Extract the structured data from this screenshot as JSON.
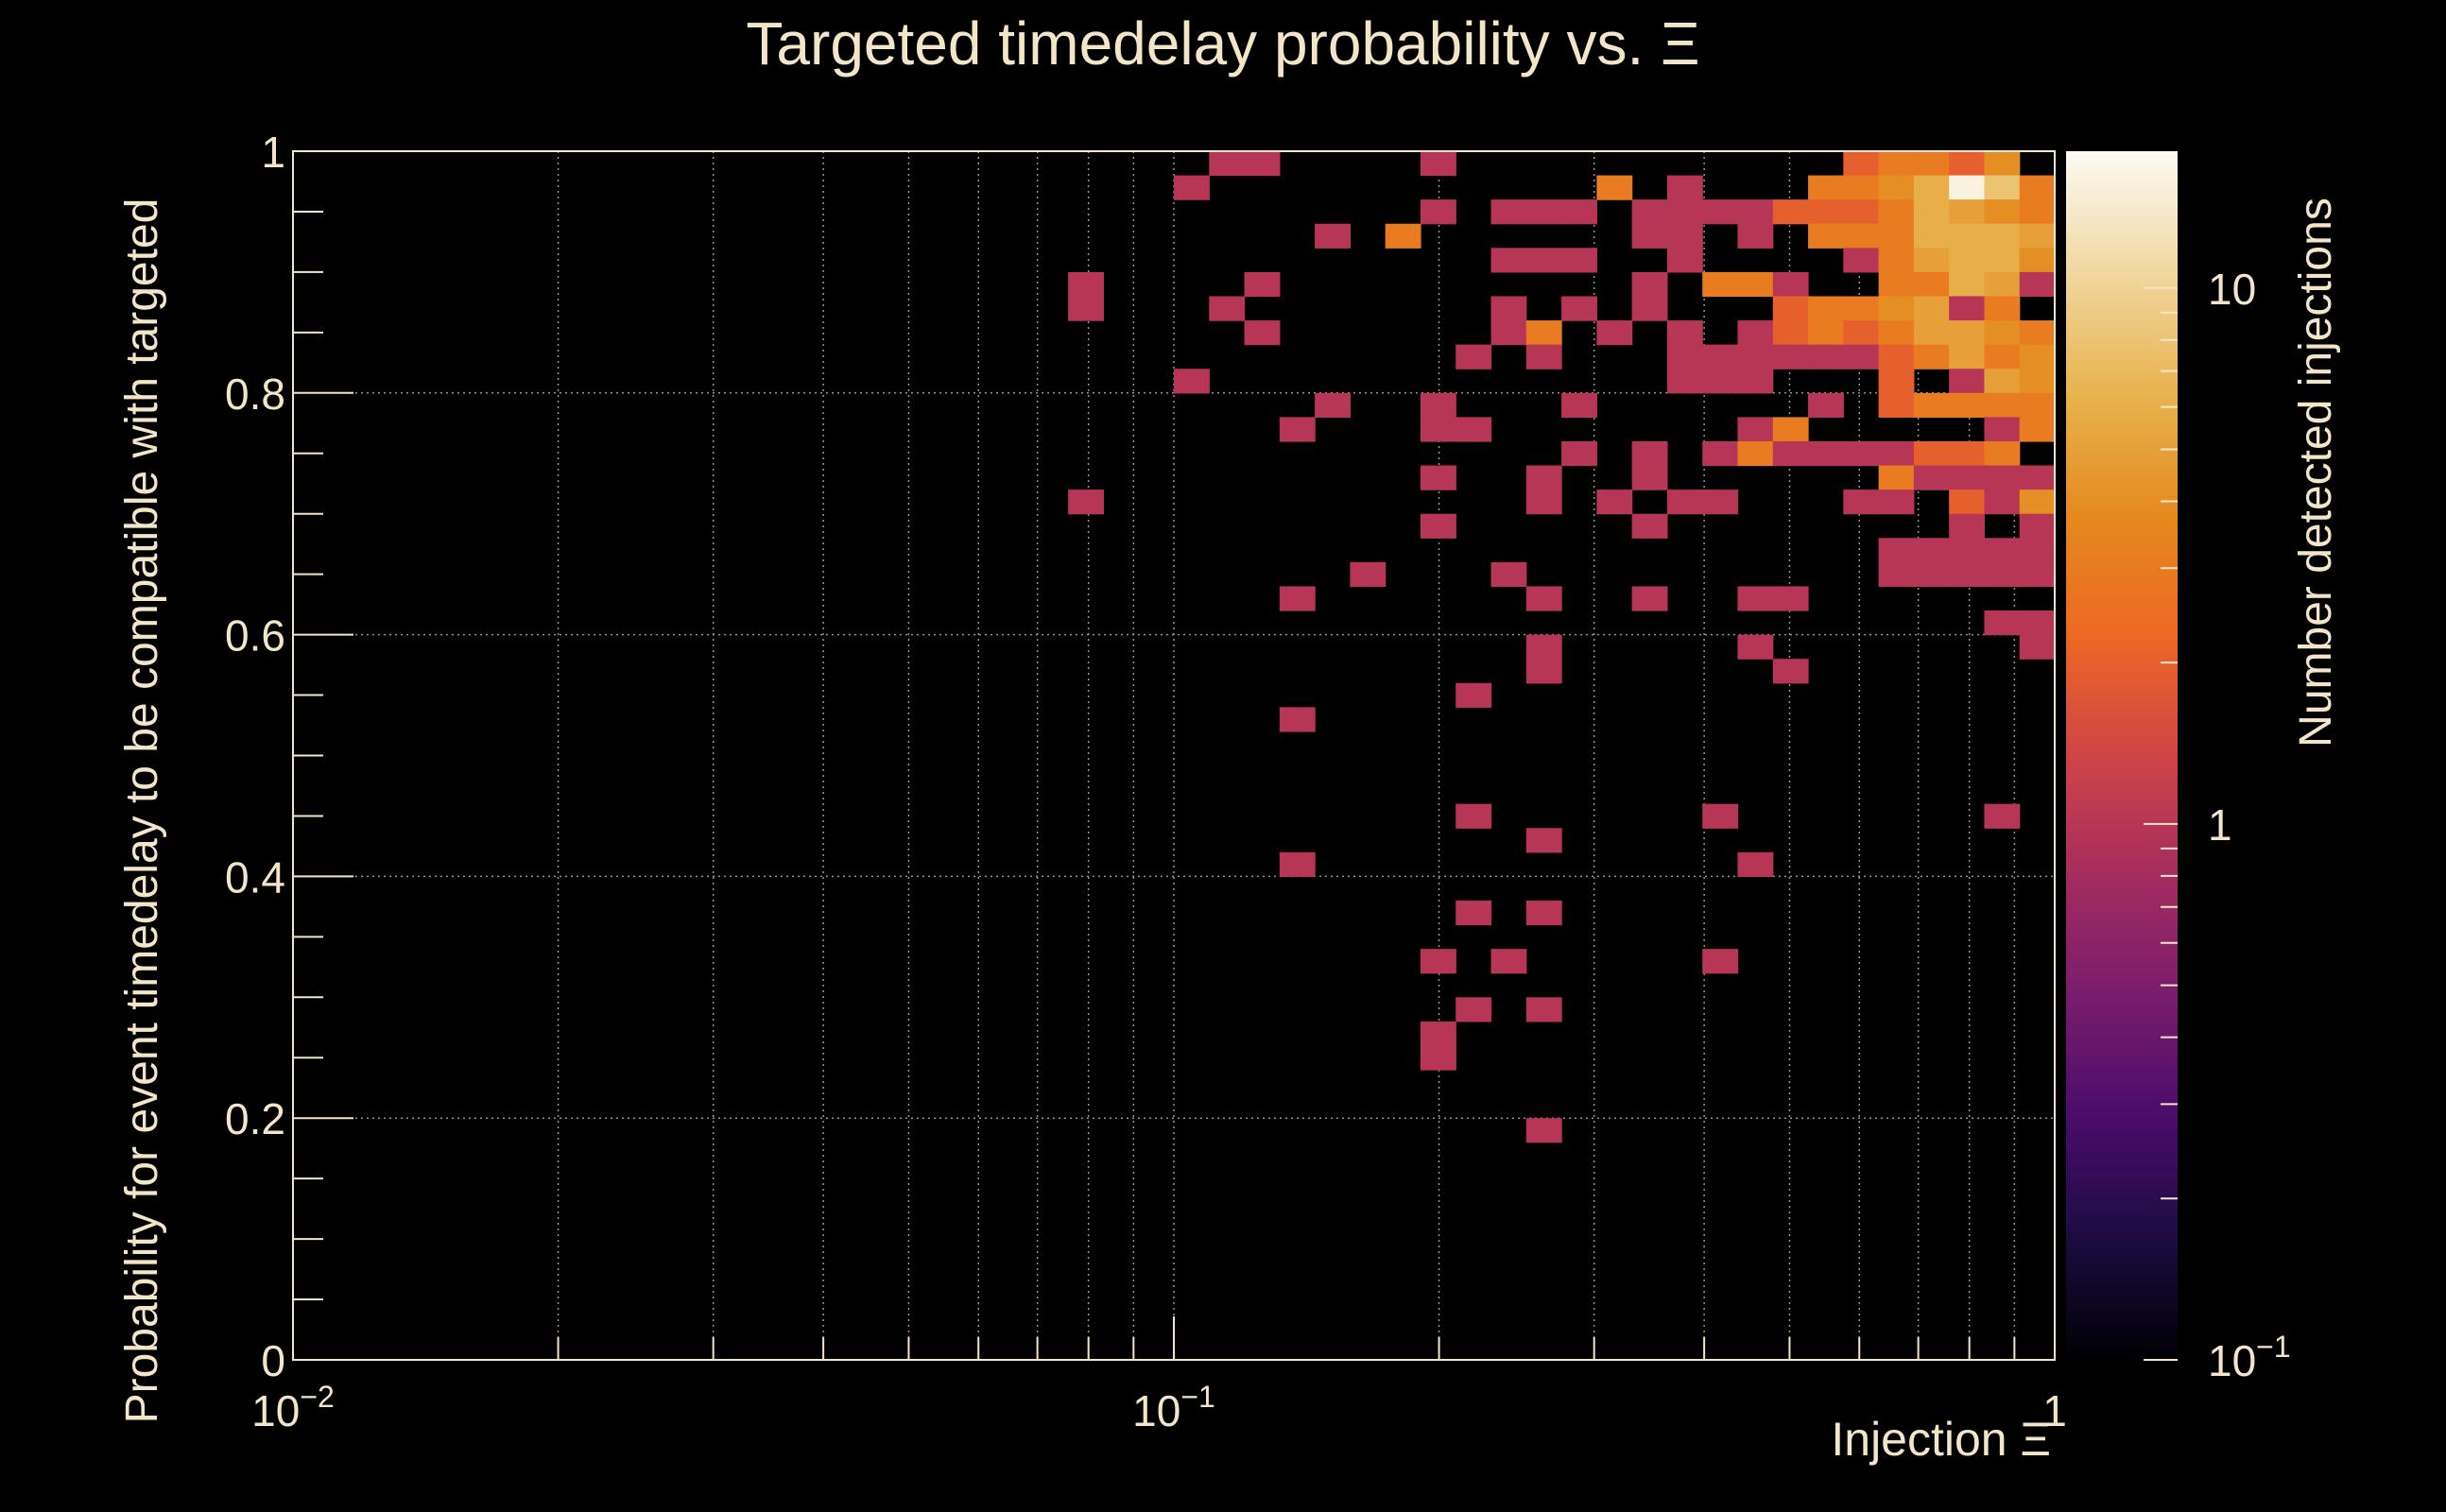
{
  "chart_data": {
    "type": "heatmap",
    "title": "Targeted timedelay probability vs.  Ξ",
    "xlabel": "Injection Ξ",
    "ylabel": "Probability for event timedelay to be compatible with targeted",
    "colorbar_label": "Number detected injections",
    "x_scale": "log",
    "xlim": [
      0.01,
      1
    ],
    "ylim": [
      0,
      1
    ],
    "x_ticks": [
      {
        "v": 0.01,
        "base": "10",
        "exp": "−2"
      },
      {
        "v": 0.1,
        "base": "10",
        "exp": "−1"
      },
      {
        "v": 1,
        "base": "1",
        "exp": ""
      }
    ],
    "y_ticks": [
      {
        "v": 0,
        "label": "0"
      },
      {
        "v": 0.2,
        "label": "0.2"
      },
      {
        "v": 0.4,
        "label": "0.4"
      },
      {
        "v": 0.6,
        "label": "0.6"
      },
      {
        "v": 0.8,
        "label": "0.8"
      },
      {
        "v": 1,
        "label": "1"
      }
    ],
    "z_scale": "log",
    "zlim": [
      0.1,
      18
    ],
    "z_ticks": [
      {
        "v": 10,
        "base": "10",
        "exp": ""
      },
      {
        "v": 1,
        "base": "1",
        "exp": ""
      },
      {
        "v": 0.1,
        "base": "10",
        "exp": "−1"
      }
    ],
    "grid": true,
    "colormap": [
      "#000004",
      "#1b0c41",
      "#4a0c6b",
      "#781c6d",
      "#a52c60",
      "#cf4446",
      "#ed6925",
      "#e58a1e",
      "#e8b350",
      "#f1d7a0",
      "#fcfaf4"
    ],
    "bins": {
      "x_count": 50,
      "y_count": 50,
      "x_min_exp": -2,
      "x_max_exp": 0,
      "note_cells": "[ix, iy, count]"
    },
    "cells": [
      [
        26,
        49,
        1
      ],
      [
        27,
        49,
        1
      ],
      [
        32,
        49,
        1
      ],
      [
        44,
        49,
        2
      ],
      [
        45,
        49,
        3
      ],
      [
        46,
        49,
        3
      ],
      [
        47,
        49,
        2
      ],
      [
        48,
        49,
        4
      ],
      [
        25,
        48,
        1
      ],
      [
        37,
        48,
        3
      ],
      [
        39,
        48,
        1
      ],
      [
        43,
        48,
        3
      ],
      [
        44,
        48,
        3
      ],
      [
        45,
        48,
        4
      ],
      [
        46,
        48,
        6
      ],
      [
        47,
        48,
        16
      ],
      [
        48,
        48,
        8
      ],
      [
        49,
        48,
        3
      ],
      [
        32,
        47,
        1
      ],
      [
        34,
        47,
        1
      ],
      [
        35,
        47,
        1
      ],
      [
        36,
        47,
        1
      ],
      [
        38,
        47,
        1
      ],
      [
        39,
        47,
        1
      ],
      [
        40,
        47,
        1
      ],
      [
        41,
        47,
        1
      ],
      [
        42,
        47,
        2
      ],
      [
        43,
        47,
        2
      ],
      [
        44,
        47,
        2
      ],
      [
        45,
        47,
        3
      ],
      [
        46,
        47,
        6
      ],
      [
        47,
        47,
        5
      ],
      [
        48,
        47,
        4
      ],
      [
        49,
        47,
        3
      ],
      [
        29,
        46,
        1
      ],
      [
        31,
        46,
        3
      ],
      [
        38,
        46,
        1
      ],
      [
        39,
        46,
        1
      ],
      [
        41,
        46,
        1
      ],
      [
        43,
        46,
        3
      ],
      [
        44,
        46,
        3
      ],
      [
        45,
        46,
        3
      ],
      [
        46,
        46,
        6
      ],
      [
        47,
        46,
        6
      ],
      [
        48,
        46,
        6
      ],
      [
        49,
        46,
        5
      ],
      [
        34,
        45,
        1
      ],
      [
        35,
        45,
        1
      ],
      [
        36,
        45,
        1
      ],
      [
        39,
        45,
        1
      ],
      [
        44,
        45,
        1
      ],
      [
        45,
        45,
        3
      ],
      [
        46,
        45,
        5
      ],
      [
        47,
        45,
        6
      ],
      [
        48,
        45,
        6
      ],
      [
        49,
        45,
        4
      ],
      [
        22,
        44,
        1
      ],
      [
        27,
        44,
        1
      ],
      [
        38,
        44,
        1
      ],
      [
        40,
        44,
        3
      ],
      [
        41,
        44,
        3
      ],
      [
        42,
        44,
        1
      ],
      [
        45,
        44,
        3
      ],
      [
        46,
        44,
        3
      ],
      [
        47,
        44,
        6
      ],
      [
        48,
        44,
        5
      ],
      [
        49,
        44,
        1
      ],
      [
        22,
        43,
        1
      ],
      [
        26,
        43,
        1
      ],
      [
        34,
        43,
        1
      ],
      [
        36,
        43,
        1
      ],
      [
        38,
        43,
        1
      ],
      [
        42,
        43,
        2
      ],
      [
        43,
        43,
        3
      ],
      [
        44,
        43,
        3
      ],
      [
        45,
        43,
        4
      ],
      [
        46,
        43,
        5
      ],
      [
        47,
        43,
        1
      ],
      [
        48,
        43,
        3
      ],
      [
        27,
        42,
        1
      ],
      [
        34,
        42,
        1
      ],
      [
        35,
        42,
        3
      ],
      [
        37,
        42,
        1
      ],
      [
        39,
        42,
        1
      ],
      [
        41,
        42,
        1
      ],
      [
        42,
        42,
        2
      ],
      [
        43,
        42,
        3
      ],
      [
        44,
        42,
        2
      ],
      [
        45,
        42,
        3
      ],
      [
        46,
        42,
        5
      ],
      [
        47,
        42,
        5
      ],
      [
        48,
        42,
        4
      ],
      [
        49,
        42,
        3
      ],
      [
        33,
        41,
        1
      ],
      [
        35,
        41,
        1
      ],
      [
        39,
        41,
        1
      ],
      [
        40,
        41,
        1
      ],
      [
        41,
        41,
        1
      ],
      [
        42,
        41,
        1
      ],
      [
        43,
        41,
        1
      ],
      [
        44,
        41,
        1
      ],
      [
        45,
        41,
        2
      ],
      [
        46,
        41,
        3
      ],
      [
        47,
        41,
        5
      ],
      [
        48,
        41,
        3
      ],
      [
        49,
        41,
        4
      ],
      [
        25,
        40,
        1
      ],
      [
        39,
        40,
        1
      ],
      [
        40,
        40,
        1
      ],
      [
        41,
        40,
        1
      ],
      [
        45,
        40,
        2
      ],
      [
        47,
        40,
        1
      ],
      [
        48,
        40,
        5
      ],
      [
        49,
        40,
        4
      ],
      [
        29,
        39,
        1
      ],
      [
        32,
        39,
        1
      ],
      [
        36,
        39,
        1
      ],
      [
        43,
        39,
        1
      ],
      [
        45,
        39,
        2
      ],
      [
        46,
        39,
        3
      ],
      [
        47,
        39,
        3
      ],
      [
        48,
        39,
        3
      ],
      [
        49,
        39,
        3
      ],
      [
        28,
        38,
        1
      ],
      [
        32,
        38,
        1
      ],
      [
        33,
        38,
        1
      ],
      [
        41,
        38,
        1
      ],
      [
        42,
        38,
        3
      ],
      [
        48,
        38,
        1
      ],
      [
        49,
        38,
        3
      ],
      [
        36,
        37,
        1
      ],
      [
        38,
        37,
        1
      ],
      [
        40,
        37,
        1
      ],
      [
        41,
        37,
        3
      ],
      [
        42,
        37,
        1
      ],
      [
        43,
        37,
        1
      ],
      [
        44,
        37,
        1
      ],
      [
        45,
        37,
        1
      ],
      [
        46,
        37,
        2
      ],
      [
        47,
        37,
        2
      ],
      [
        48,
        37,
        3
      ],
      [
        32,
        36,
        1
      ],
      [
        35,
        36,
        1
      ],
      [
        38,
        36,
        1
      ],
      [
        45,
        36,
        3
      ],
      [
        46,
        36,
        1
      ],
      [
        47,
        36,
        1
      ],
      [
        48,
        36,
        1
      ],
      [
        49,
        36,
        1
      ],
      [
        22,
        35,
        1
      ],
      [
        35,
        35,
        1
      ],
      [
        37,
        35,
        1
      ],
      [
        39,
        35,
        1
      ],
      [
        40,
        35,
        1
      ],
      [
        44,
        35,
        1
      ],
      [
        45,
        35,
        1
      ],
      [
        47,
        35,
        2
      ],
      [
        48,
        35,
        1
      ],
      [
        49,
        35,
        4
      ],
      [
        32,
        34,
        1
      ],
      [
        38,
        34,
        1
      ],
      [
        47,
        34,
        1
      ],
      [
        49,
        34,
        1
      ],
      [
        45,
        33,
        1
      ],
      [
        46,
        33,
        1
      ],
      [
        47,
        33,
        1
      ],
      [
        48,
        33,
        1
      ],
      [
        49,
        33,
        1
      ],
      [
        30,
        32,
        1
      ],
      [
        34,
        32,
        1
      ],
      [
        45,
        32,
        1
      ],
      [
        46,
        32,
        1
      ],
      [
        47,
        32,
        1
      ],
      [
        48,
        32,
        1
      ],
      [
        49,
        32,
        1
      ],
      [
        28,
        31,
        1
      ],
      [
        35,
        31,
        1
      ],
      [
        38,
        31,
        1
      ],
      [
        41,
        31,
        1
      ],
      [
        42,
        31,
        1
      ],
      [
        48,
        30,
        1
      ],
      [
        49,
        30,
        1
      ],
      [
        35,
        29,
        1
      ],
      [
        41,
        29,
        1
      ],
      [
        49,
        29,
        1
      ],
      [
        35,
        28,
        1
      ],
      [
        42,
        28,
        1
      ],
      [
        33,
        27,
        1
      ],
      [
        28,
        26,
        1
      ],
      [
        33,
        22,
        1
      ],
      [
        40,
        22,
        1
      ],
      [
        48,
        22,
        1
      ],
      [
        35,
        21,
        1
      ],
      [
        28,
        20,
        1
      ],
      [
        41,
        20,
        1
      ],
      [
        33,
        18,
        1
      ],
      [
        35,
        18,
        1
      ],
      [
        32,
        16,
        1
      ],
      [
        34,
        16,
        1
      ],
      [
        40,
        16,
        1
      ],
      [
        33,
        14,
        1
      ],
      [
        35,
        14,
        1
      ],
      [
        32,
        13,
        1
      ],
      [
        32,
        12,
        1
      ],
      [
        35,
        9,
        1
      ]
    ]
  }
}
